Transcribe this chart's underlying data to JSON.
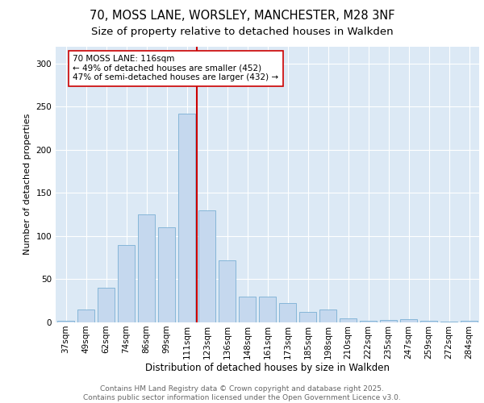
{
  "title1": "70, MOSS LANE, WORSLEY, MANCHESTER, M28 3NF",
  "title2": "Size of property relative to detached houses in Walkden",
  "xlabel": "Distribution of detached houses by size in Walkden",
  "ylabel": "Number of detached properties",
  "categories": [
    "37sqm",
    "49sqm",
    "62sqm",
    "74sqm",
    "86sqm",
    "99sqm",
    "111sqm",
    "123sqm",
    "136sqm",
    "148sqm",
    "161sqm",
    "173sqm",
    "185sqm",
    "198sqm",
    "210sqm",
    "222sqm",
    "235sqm",
    "247sqm",
    "259sqm",
    "272sqm",
    "284sqm"
  ],
  "values": [
    2,
    15,
    40,
    90,
    125,
    110,
    242,
    130,
    72,
    30,
    30,
    22,
    12,
    15,
    5,
    2,
    3,
    4,
    2,
    1,
    2
  ],
  "bar_color": "#c5d8ee",
  "bar_edge_color": "#7aafd4",
  "vline_color": "#cc0000",
  "annotation_text": "70 MOSS LANE: 116sqm\n← 49% of detached houses are smaller (452)\n47% of semi-detached houses are larger (432) →",
  "ylim": [
    0,
    320
  ],
  "yticks": [
    0,
    50,
    100,
    150,
    200,
    250,
    300
  ],
  "plot_bg_color": "#dce9f5",
  "footer_text": "Contains HM Land Registry data © Crown copyright and database right 2025.\nContains public sector information licensed under the Open Government Licence v3.0.",
  "title1_fontsize": 10.5,
  "title2_fontsize": 9.5,
  "xlabel_fontsize": 8.5,
  "ylabel_fontsize": 8,
  "tick_fontsize": 7.5,
  "footer_fontsize": 6.5,
  "annot_fontsize": 7.5
}
